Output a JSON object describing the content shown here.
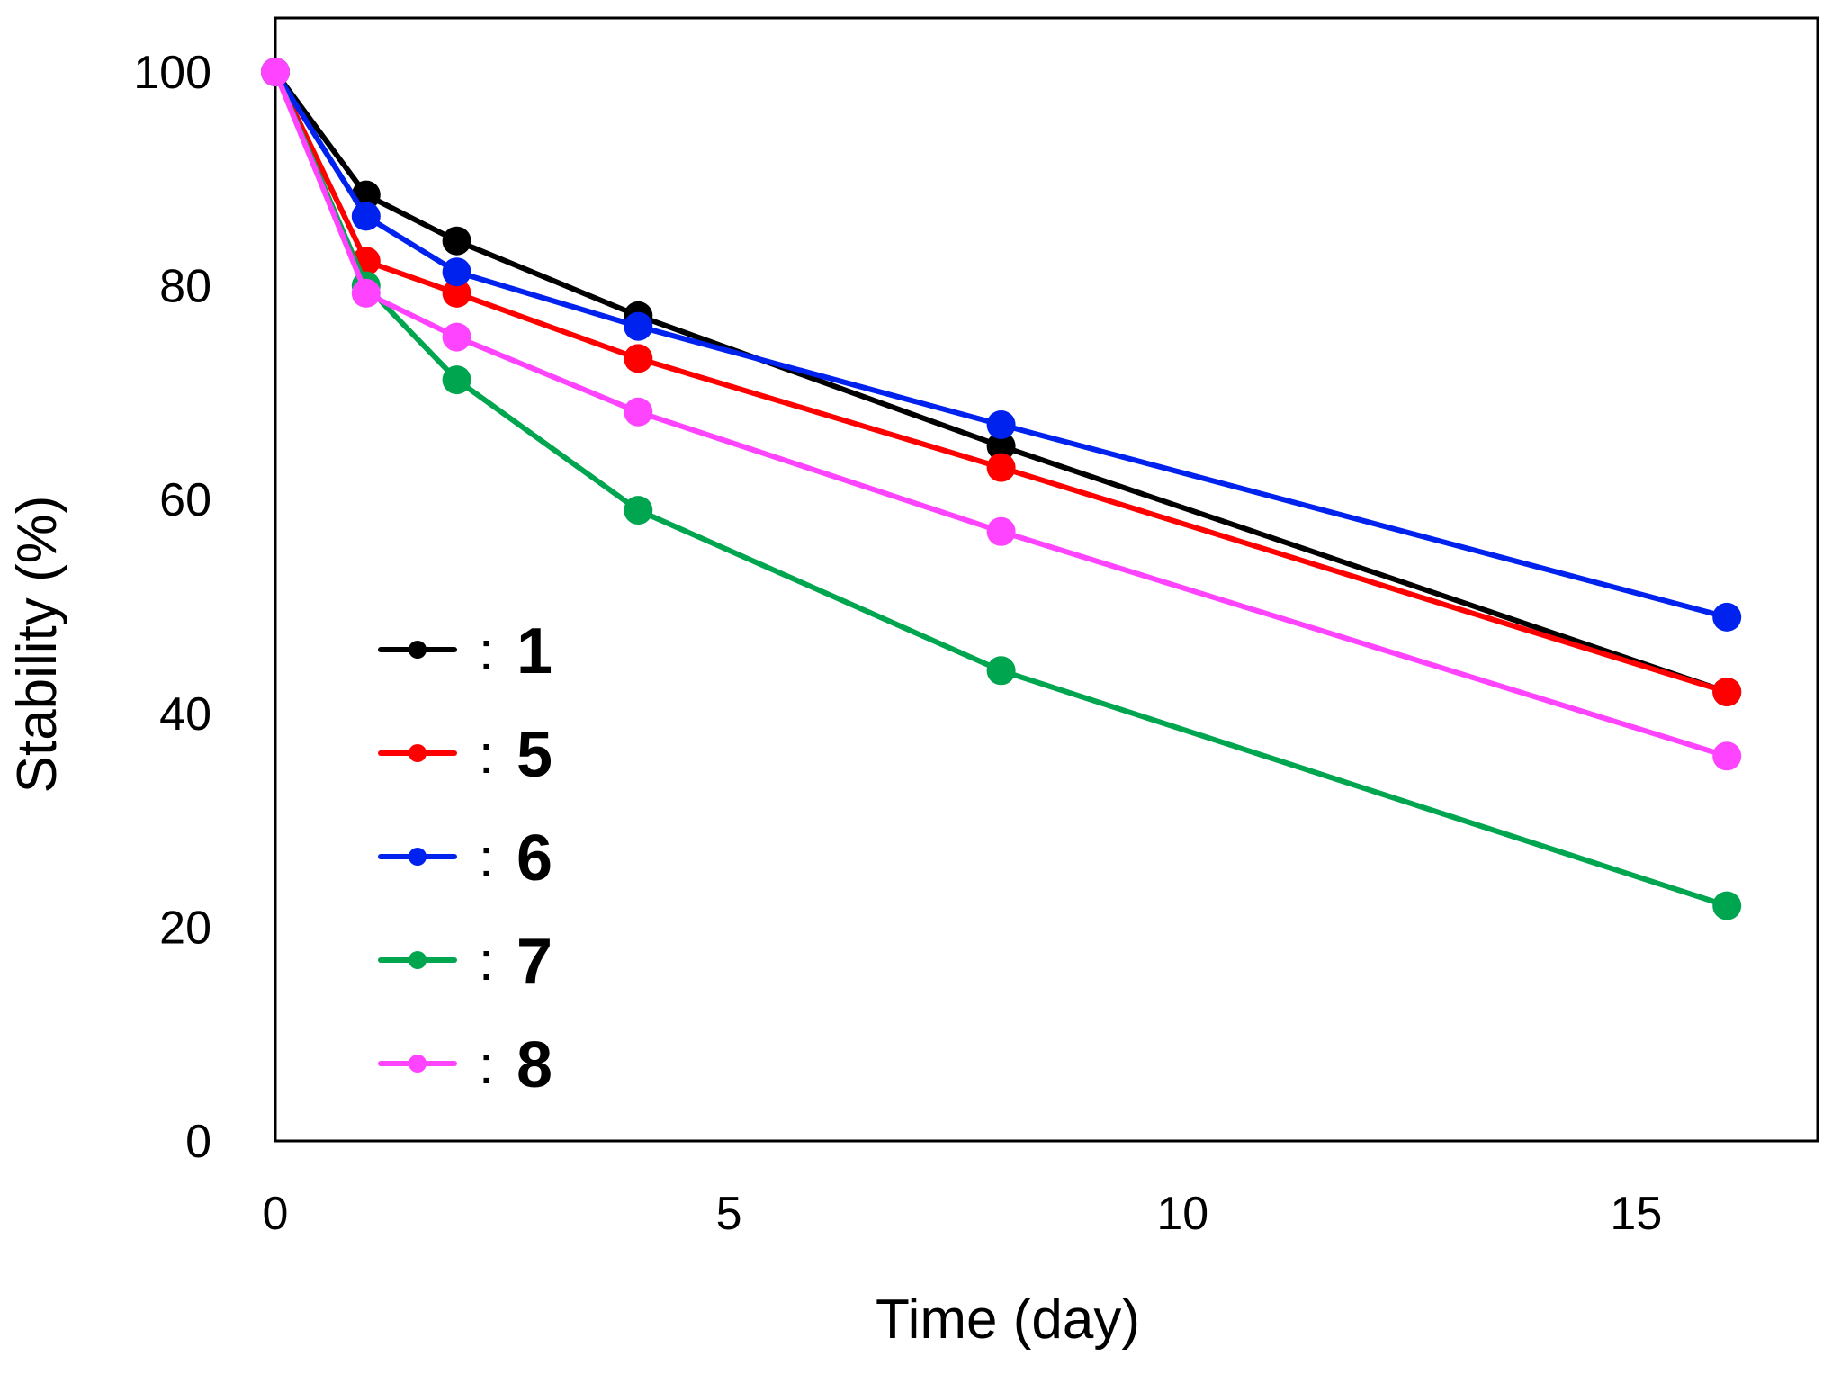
{
  "chart_data": {
    "type": "line",
    "title": "",
    "xlabel": "Time (day)",
    "ylabel": "Stability (%)",
    "xlim": [
      0,
      17
    ],
    "ylim": [
      0,
      100
    ],
    "xticks": [
      0,
      5,
      10,
      15
    ],
    "yticks": [
      0,
      20,
      40,
      60,
      80,
      100
    ],
    "x": [
      0,
      1,
      2,
      4,
      8,
      16
    ],
    "legend_separator": ":",
    "legend_position": "left-middle",
    "grid": false,
    "series": [
      {
        "name": "1",
        "color": "#000000",
        "values": [
          100,
          88.5,
          84.2,
          77.2,
          65.0,
          42.0
        ]
      },
      {
        "name": "5",
        "color": "#ff0000",
        "values": [
          100,
          82.3,
          79.3,
          73.2,
          63.0,
          42.0
        ]
      },
      {
        "name": "6",
        "color": "#0022ee",
        "values": [
          100,
          86.5,
          81.3,
          76.2,
          67.0,
          49.0
        ]
      },
      {
        "name": "7",
        "color": "#00a550",
        "values": [
          100,
          80.0,
          71.2,
          59.0,
          44.0,
          22.0
        ]
      },
      {
        "name": "8",
        "color": "#ff44ff",
        "values": [
          100,
          79.3,
          75.2,
          68.2,
          57.0,
          36.0
        ]
      }
    ]
  }
}
